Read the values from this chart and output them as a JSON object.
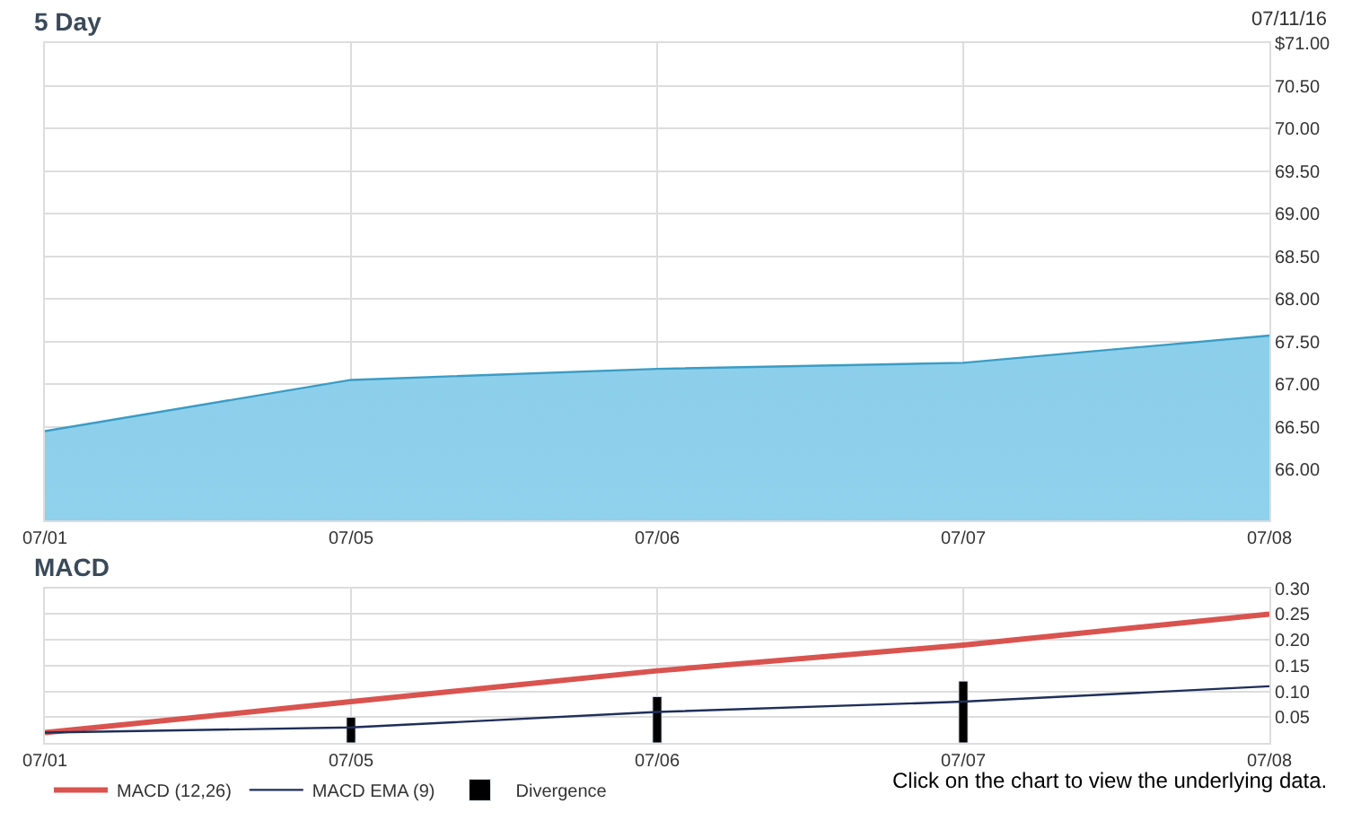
{
  "chart_data": [
    {
      "type": "area",
      "title": "5 Day",
      "annotations": [
        "07/11/16"
      ],
      "categories": [
        "07/01",
        "07/05",
        "07/06",
        "07/07",
        "07/08"
      ],
      "values": [
        66.45,
        67.05,
        67.18,
        67.25,
        67.57
      ],
      "color": "#3b9cc4",
      "ylim": [
        65.4,
        71.0
      ],
      "yticks": [
        {
          "value": 66,
          "label": "66.00"
        },
        {
          "value": 66.5,
          "label": "66.50"
        },
        {
          "value": 67,
          "label": "67.00"
        },
        {
          "value": 67.5,
          "label": "67.50"
        },
        {
          "value": 68,
          "label": "68.00"
        },
        {
          "value": 68.5,
          "label": "68.50"
        },
        {
          "value": 69,
          "label": "69.00"
        },
        {
          "value": 69.5,
          "label": "69.50"
        },
        {
          "value": 70,
          "label": "70.00"
        },
        {
          "value": 70.5,
          "label": "70.50"
        },
        {
          "value": 71,
          "label": "$71.00"
        }
      ],
      "grid": true
    },
    {
      "type": "line",
      "title": "MACD",
      "annotations": [
        "Click on the chart to view the underlying data."
      ],
      "categories": [
        "07/01",
        "07/05",
        "07/06",
        "07/07",
        "07/08"
      ],
      "series": [
        {
          "name": "MACD (12,26)",
          "color": "#d9534f",
          "values": [
            0.02,
            0.08,
            0.14,
            0.19,
            0.25
          ]
        },
        {
          "name": "MACD EMA (9)",
          "color": "#1f2f5a",
          "values": [
            0.02,
            0.03,
            0.06,
            0.08,
            0.11
          ]
        },
        {
          "name": "Divergence",
          "type": "bar",
          "color": "#000000",
          "values": [
            null,
            0.05,
            0.09,
            0.12,
            null
          ]
        }
      ],
      "ylim": [
        0,
        0.3
      ],
      "yticks": [
        0.05,
        {
          "value": 0.1,
          "label": "0.10"
        },
        0.15,
        {
          "value": 0.2,
          "label": "0.20"
        },
        0.25,
        {
          "value": 0.3,
          "label": "0.30"
        }
      ],
      "grid": true,
      "legend": "bottom left"
    }
  ]
}
